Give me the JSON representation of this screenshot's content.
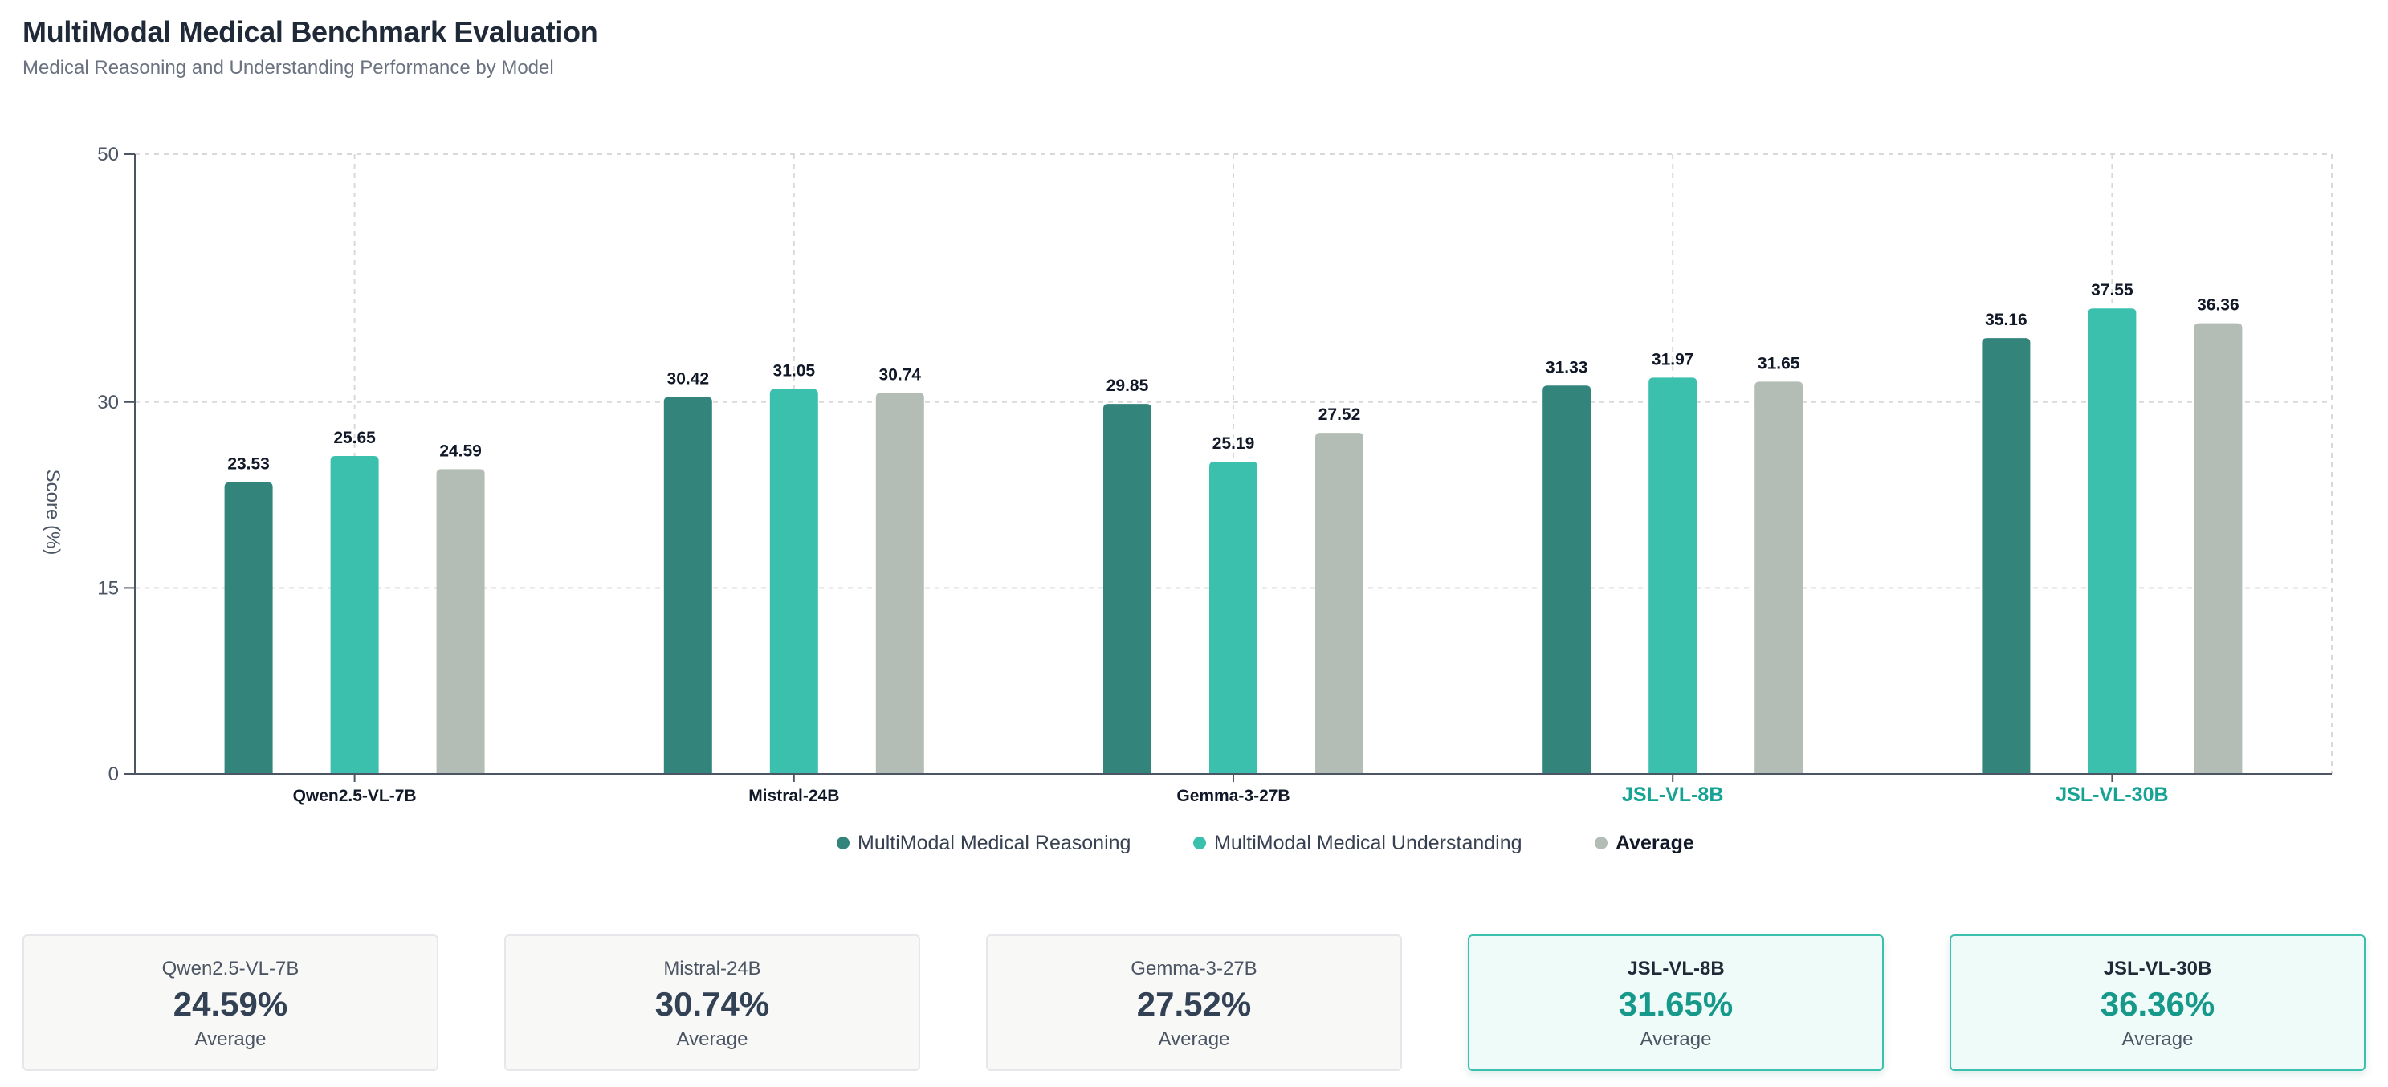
{
  "header": {
    "title": "MultiModal Medical Benchmark Evaluation",
    "subtitle": "Medical Reasoning and Understanding Performance by Model"
  },
  "colors": {
    "reasoning": "#33857c",
    "understanding": "#3cc0ae",
    "average": "#b3bdb5",
    "highlight_text": "#16a394",
    "axis_text": "#111827",
    "grid": "#d9d9d9"
  },
  "chart_data": {
    "type": "bar",
    "title": "MultiModal Medical Benchmark Evaluation",
    "subtitle": "Medical Reasoning and Understanding Performance by Model",
    "xlabel": "",
    "ylabel": "Score (%)",
    "ylim": [
      0,
      50
    ],
    "yticks": [
      0,
      15,
      30,
      50
    ],
    "grid": true,
    "legend_position": "bottom-center",
    "categories": [
      "Qwen2.5-VL-7B",
      "Mistral-24B",
      "Gemma-3-27B",
      "JSL-VL-8B",
      "JSL-VL-30B"
    ],
    "highlighted_categories": [
      "JSL-VL-8B",
      "JSL-VL-30B"
    ],
    "series": [
      {
        "name": "MultiModal Medical Reasoning",
        "key": "reasoning",
        "values": [
          23.53,
          30.42,
          29.85,
          31.33,
          35.16
        ]
      },
      {
        "name": "MultiModal Medical Understanding",
        "key": "understanding",
        "values": [
          25.65,
          31.05,
          25.19,
          31.97,
          37.55
        ]
      },
      {
        "name": "Average",
        "key": "average",
        "bold_legend": true,
        "values": [
          24.59,
          30.74,
          27.52,
          31.65,
          36.36
        ]
      }
    ]
  },
  "cards": [
    {
      "model": "Qwen2.5-VL-7B",
      "value": "24.59%",
      "label": "Average",
      "highlight": false
    },
    {
      "model": "Mistral-24B",
      "value": "30.74%",
      "label": "Average",
      "highlight": false
    },
    {
      "model": "Gemma-3-27B",
      "value": "27.52%",
      "label": "Average",
      "highlight": false
    },
    {
      "model": "JSL-VL-8B",
      "value": "31.65%",
      "label": "Average",
      "highlight": true
    },
    {
      "model": "JSL-VL-30B",
      "value": "36.36%",
      "label": "Average",
      "highlight": true
    }
  ]
}
